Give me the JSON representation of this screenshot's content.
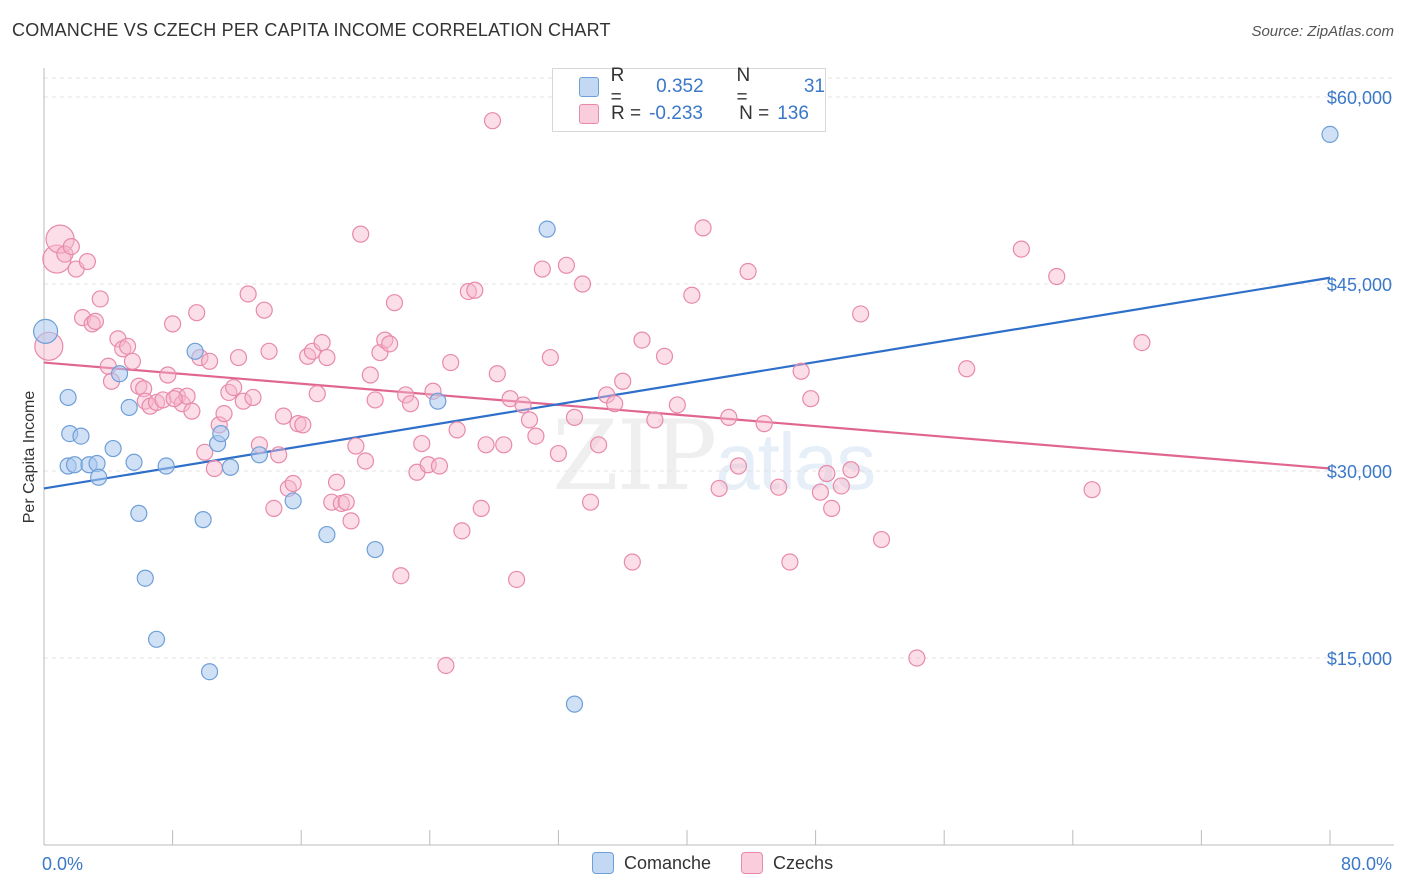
{
  "title": "COMANCHE VS CZECH PER CAPITA INCOME CORRELATION CHART",
  "source": "Source: ZipAtlas.com",
  "colors": {
    "comanche_fill": "#a9c8ee",
    "comanche_stroke": "#6f9fd8",
    "comanche_line": "#2e6fc9",
    "czech_fill": "#f6b6cb",
    "czech_stroke": "#e88aaa",
    "czech_line": "#e06690",
    "axis_text": "#3b78c8",
    "grid": "#e3e3e3"
  },
  "legend": {
    "rows": [
      {
        "r_label": "R =",
        "r_value": "0.352",
        "n_label": "N =",
        "n_value": "31"
      },
      {
        "r_label": "R =",
        "r_value": "-0.233",
        "n_label": "N =",
        "n_value": "136"
      }
    ]
  },
  "bottom_legend": {
    "comanche": "Comanche",
    "czechs": "Czechs"
  },
  "watermark": {
    "zip": "ZIP",
    "atlas": "atlas"
  },
  "chart_data": {
    "type": "scatter",
    "title": "COMANCHE VS CZECH PER CAPITA INCOME CORRELATION CHART",
    "xlabel": "",
    "ylabel": "Per Capita Income",
    "xlim": [
      0,
      80
    ],
    "ylim": [
      0,
      63000
    ],
    "x_tick_labels": [
      "0.0%",
      "80.0%"
    ],
    "y_ticks": [
      15000,
      30000,
      45000,
      60000
    ],
    "y_tick_labels": [
      "$15,000",
      "$30,000",
      "$45,000",
      "$60,000"
    ],
    "grid": "horizontal dashed",
    "series": [
      {
        "name": "Comanche",
        "r": 0.352,
        "n": 31,
        "trend": {
          "x": [
            0,
            80
          ],
          "y": [
            28600,
            45500
          ]
        },
        "points": [
          [
            0.1,
            41200
          ],
          [
            1.5,
            35900
          ],
          [
            1.6,
            33000
          ],
          [
            1.5,
            30400
          ],
          [
            1.9,
            30500
          ],
          [
            2.3,
            32800
          ],
          [
            2.8,
            30500
          ],
          [
            3.3,
            30600
          ],
          [
            3.4,
            29500
          ],
          [
            4.3,
            31800
          ],
          [
            4.7,
            37800
          ],
          [
            5.3,
            35100
          ],
          [
            5.6,
            30700
          ],
          [
            5.9,
            26600
          ],
          [
            6.3,
            21400
          ],
          [
            7.0,
            16500
          ],
          [
            7.6,
            30400
          ],
          [
            9.4,
            39600
          ],
          [
            9.9,
            26100
          ],
          [
            10.3,
            13900
          ],
          [
            10.8,
            32200
          ],
          [
            11.0,
            33000
          ],
          [
            11.6,
            30300
          ],
          [
            13.4,
            31300
          ],
          [
            15.5,
            27600
          ],
          [
            17.6,
            24900
          ],
          [
            20.6,
            23700
          ],
          [
            24.5,
            35600
          ],
          [
            31.3,
            49400
          ],
          [
            33.0,
            11300
          ],
          [
            80.0,
            57000
          ]
        ]
      },
      {
        "name": "Czechs",
        "r": -0.233,
        "n": 136,
        "trend": {
          "x": [
            0,
            80
          ],
          "y": [
            38700,
            30200
          ]
        },
        "points": [
          [
            0.3,
            40000
          ],
          [
            0.8,
            47000
          ],
          [
            1.0,
            48600
          ],
          [
            1.3,
            47400
          ],
          [
            1.7,
            48000
          ],
          [
            2.0,
            46200
          ],
          [
            2.4,
            42300
          ],
          [
            2.7,
            46800
          ],
          [
            3.0,
            41800
          ],
          [
            3.2,
            42000
          ],
          [
            3.5,
            43800
          ],
          [
            4.0,
            38400
          ],
          [
            4.2,
            37200
          ],
          [
            4.6,
            40600
          ],
          [
            4.9,
            39800
          ],
          [
            5.2,
            40000
          ],
          [
            5.5,
            38800
          ],
          [
            5.9,
            36800
          ],
          [
            6.2,
            36600
          ],
          [
            6.3,
            35600
          ],
          [
            6.6,
            35200
          ],
          [
            7.0,
            35500
          ],
          [
            7.4,
            35700
          ],
          [
            7.7,
            37700
          ],
          [
            8.0,
            41800
          ],
          [
            8.3,
            36000
          ],
          [
            8.6,
            35400
          ],
          [
            8.9,
            36000
          ],
          [
            9.2,
            34800
          ],
          [
            9.5,
            42700
          ],
          [
            9.7,
            39100
          ],
          [
            10.0,
            31500
          ],
          [
            10.3,
            38800
          ],
          [
            10.6,
            30200
          ],
          [
            10.9,
            33700
          ],
          [
            11.2,
            34600
          ],
          [
            11.5,
            36300
          ],
          [
            11.8,
            36700
          ],
          [
            12.1,
            39100
          ],
          [
            12.4,
            35600
          ],
          [
            12.7,
            44200
          ],
          [
            13.0,
            35900
          ],
          [
            13.4,
            32100
          ],
          [
            13.7,
            42900
          ],
          [
            14.0,
            39600
          ],
          [
            14.3,
            27000
          ],
          [
            14.6,
            31300
          ],
          [
            14.9,
            34400
          ],
          [
            15.2,
            28600
          ],
          [
            15.5,
            29000
          ],
          [
            15.8,
            33800
          ],
          [
            16.1,
            33700
          ],
          [
            16.4,
            39200
          ],
          [
            16.7,
            39600
          ],
          [
            17.0,
            36200
          ],
          [
            17.3,
            40300
          ],
          [
            17.6,
            39100
          ],
          [
            17.9,
            27500
          ],
          [
            18.2,
            29100
          ],
          [
            18.5,
            27400
          ],
          [
            18.8,
            27500
          ],
          [
            19.1,
            26000
          ],
          [
            19.4,
            32000
          ],
          [
            19.7,
            49000
          ],
          [
            20.0,
            30800
          ],
          [
            20.3,
            37700
          ],
          [
            20.6,
            35700
          ],
          [
            20.9,
            39500
          ],
          [
            21.2,
            40500
          ],
          [
            21.5,
            40200
          ],
          [
            21.8,
            43500
          ],
          [
            22.2,
            21600
          ],
          [
            22.5,
            36100
          ],
          [
            22.8,
            35400
          ],
          [
            23.2,
            29900
          ],
          [
            23.5,
            32200
          ],
          [
            23.9,
            30500
          ],
          [
            24.2,
            36400
          ],
          [
            24.6,
            30400
          ],
          [
            25.0,
            14400
          ],
          [
            25.3,
            38700
          ],
          [
            25.7,
            33300
          ],
          [
            26.0,
            25200
          ],
          [
            26.4,
            44400
          ],
          [
            26.8,
            44500
          ],
          [
            27.2,
            27000
          ],
          [
            27.5,
            32100
          ],
          [
            27.9,
            58100
          ],
          [
            28.2,
            37800
          ],
          [
            28.6,
            32100
          ],
          [
            29.0,
            35800
          ],
          [
            29.4,
            21300
          ],
          [
            29.8,
            35300
          ],
          [
            30.2,
            34100
          ],
          [
            30.6,
            32800
          ],
          [
            31.0,
            46200
          ],
          [
            31.5,
            39100
          ],
          [
            32.0,
            31400
          ],
          [
            32.5,
            46500
          ],
          [
            33.0,
            34300
          ],
          [
            33.5,
            45000
          ],
          [
            34.0,
            27500
          ],
          [
            34.5,
            32100
          ],
          [
            35.0,
            36100
          ],
          [
            35.5,
            35400
          ],
          [
            36.0,
            37200
          ],
          [
            36.6,
            22700
          ],
          [
            37.2,
            40500
          ],
          [
            38.0,
            34100
          ],
          [
            38.6,
            39200
          ],
          [
            39.4,
            35300
          ],
          [
            40.3,
            44100
          ],
          [
            41.0,
            49500
          ],
          [
            42.0,
            28600
          ],
          [
            42.6,
            34300
          ],
          [
            43.2,
            30400
          ],
          [
            43.8,
            46000
          ],
          [
            44.8,
            33800
          ],
          [
            45.7,
            28700
          ],
          [
            46.4,
            22700
          ],
          [
            47.1,
            38000
          ],
          [
            47.7,
            35800
          ],
          [
            48.3,
            28300
          ],
          [
            49.0,
            27000
          ],
          [
            49.6,
            28800
          ],
          [
            50.2,
            30100
          ],
          [
            50.8,
            42600
          ],
          [
            52.1,
            24500
          ],
          [
            54.3,
            15000
          ],
          [
            57.4,
            38200
          ],
          [
            60.8,
            47800
          ],
          [
            63.0,
            45600
          ],
          [
            65.2,
            28500
          ],
          [
            68.3,
            40300
          ],
          [
            48.7,
            29800
          ],
          [
            8.1,
            35800
          ]
        ]
      }
    ]
  }
}
